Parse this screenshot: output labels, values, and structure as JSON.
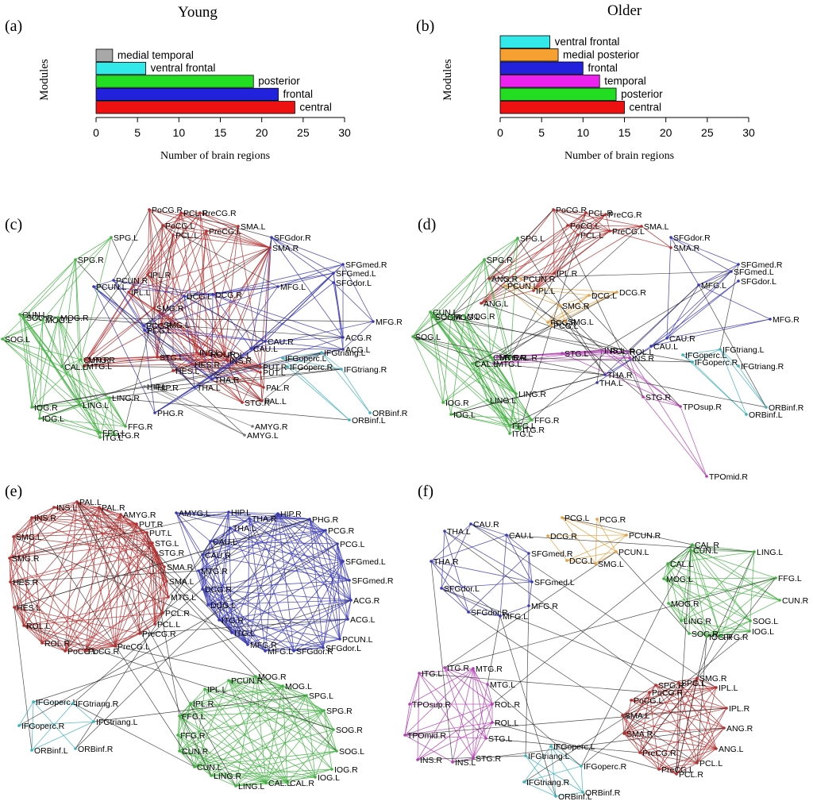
{
  "chart_data": [
    {
      "type": "bar",
      "panel": "(a)",
      "title": "Young",
      "xlabel": "Number of brain regions",
      "ylabel": "Modules",
      "xlim": [
        0,
        30
      ],
      "xticks": [
        0,
        5,
        10,
        15,
        20,
        25,
        30
      ],
      "categories": [
        "medial temporal",
        "ventral frontal",
        "posterior",
        "frontal",
        "central"
      ],
      "values": [
        2,
        6,
        19,
        22,
        24
      ],
      "colors": [
        "#a8a8a8",
        "#33e8e8",
        "#22dd22",
        "#2222dd",
        "#ee1111"
      ]
    },
    {
      "type": "bar",
      "panel": "(b)",
      "title": "Older",
      "xlabel": "Number of brain regions",
      "ylabel": "Modules",
      "xlim": [
        0,
        30
      ],
      "xticks": [
        0,
        5,
        10,
        15,
        20,
        25,
        30
      ],
      "categories": [
        "ventral frontal",
        "medial posterior",
        "frontal",
        "temporal",
        "posterior",
        "central"
      ],
      "values": [
        6,
        7,
        10,
        12,
        14,
        15
      ],
      "colors": [
        "#33e8e8",
        "#f5a030",
        "#2222dd",
        "#ee22ee",
        "#22dd22",
        "#ee1111"
      ]
    }
  ],
  "networks": [
    {
      "panel": "(c)",
      "modules": {
        "central": "#b03030",
        "frontal": "#3a3ab0",
        "posterior": "#44b044",
        "ventral frontal": "#40b0b8",
        "medial temporal": "#777777"
      },
      "nodes": [
        [
          "PoCG.R",
          "central"
        ],
        [
          "PCL.R",
          "central"
        ],
        [
          "PreCG.R",
          "central"
        ],
        [
          "PoCG.L",
          "central"
        ],
        [
          "PCL.L",
          "central"
        ],
        [
          "PreCG.L",
          "central"
        ],
        [
          "SMA.L",
          "central"
        ],
        [
          "SMA.R",
          "central"
        ],
        [
          "SFGdor.R",
          "frontal"
        ],
        [
          "SPG.L",
          "posterior"
        ],
        [
          "SPG.R",
          "posterior"
        ],
        [
          "SFGmed.R",
          "frontal"
        ],
        [
          "SFGmed.L",
          "frontal"
        ],
        [
          "SFGdor.L",
          "frontal"
        ],
        [
          "IPL.R",
          "central"
        ],
        [
          "PCUN.R",
          "frontal"
        ],
        [
          "PCUN.L",
          "frontal"
        ],
        [
          "IPL.L",
          "central"
        ],
        [
          "DCG.L",
          "frontal"
        ],
        [
          "DCG.R",
          "frontal"
        ],
        [
          "MFG.L",
          "frontal"
        ],
        [
          "SMG.R",
          "central"
        ],
        [
          "SMG.L",
          "central"
        ],
        [
          "PCG.R",
          "frontal"
        ],
        [
          "PCG.L",
          "frontal"
        ],
        [
          "CUN.L",
          "posterior"
        ],
        [
          "SOG.R",
          "posterior"
        ],
        [
          "MOG.L",
          "posterior"
        ],
        [
          "MOG.R",
          "posterior"
        ],
        [
          "SOG.L",
          "posterior"
        ],
        [
          "MFG.R",
          "frontal"
        ],
        [
          "CAU.R",
          "frontal"
        ],
        [
          "ACG.R",
          "frontal"
        ],
        [
          "CAU.L",
          "frontal"
        ],
        [
          "ACG.L",
          "frontal"
        ],
        [
          "CUN.R",
          "posterior"
        ],
        [
          "MTG.R",
          "central"
        ],
        [
          "MTG.L",
          "central"
        ],
        [
          "CAL.L",
          "posterior"
        ],
        [
          "STG.L",
          "central"
        ],
        [
          "INS.L",
          "central"
        ],
        [
          "ROL.L",
          "central"
        ],
        [
          "INS.R",
          "central"
        ],
        [
          "ROL.R",
          "central"
        ],
        [
          "HES.R",
          "central"
        ],
        [
          "HES.L",
          "central"
        ],
        [
          "IFGoperc.L",
          "ventral frontal"
        ],
        [
          "IFGtriang.L",
          "ventral frontal"
        ],
        [
          "PUT.R",
          "central"
        ],
        [
          "IFGoperc.R",
          "ventral frontal"
        ],
        [
          "IFGtriang.R",
          "ventral frontal"
        ],
        [
          "PUT.L",
          "central"
        ],
        [
          "THA.R",
          "frontal"
        ],
        [
          "THA.L",
          "frontal"
        ],
        [
          "HIP.R",
          "medial temporal"
        ],
        [
          "HIP.L",
          "medial temporal"
        ],
        [
          "LING.R",
          "posterior"
        ],
        [
          "LING.L",
          "posterior"
        ],
        [
          "PAL.R",
          "central"
        ],
        [
          "PAL.L",
          "central"
        ],
        [
          "STG.R",
          "central"
        ],
        [
          "IOG.R",
          "posterior"
        ],
        [
          "IOG.L",
          "posterior"
        ],
        [
          "PHG.R",
          "frontal"
        ],
        [
          "ORBinf.R",
          "ventral frontal"
        ],
        [
          "ORBinf.L",
          "ventral frontal"
        ],
        [
          "FFG.L",
          "posterior"
        ],
        [
          "FFG.R",
          "posterior"
        ],
        [
          "ITG.R",
          "posterior"
        ],
        [
          "ITG.L",
          "posterior"
        ],
        [
          "AMYG.R",
          "medial temporal"
        ],
        [
          "AMYG.L",
          "medial temporal"
        ]
      ]
    },
    {
      "panel": "(d)",
      "modules": {
        "central": "#b03030",
        "frontal": "#3a3ab0",
        "posterior": "#44b044",
        "ventral frontal": "#40b0b8",
        "medial posterior": "#e0a040",
        "temporal": "#b040b0"
      },
      "nodes": [
        [
          "PoCG.R",
          "central"
        ],
        [
          "PCL.R",
          "central"
        ],
        [
          "PreCG.R",
          "central"
        ],
        [
          "PoCG.L",
          "central"
        ],
        [
          "PCL.L",
          "central"
        ],
        [
          "PreCG.L",
          "central"
        ],
        [
          "SMA.L",
          "central"
        ],
        [
          "SMA.R",
          "central"
        ],
        [
          "SFGdor.R",
          "frontal"
        ],
        [
          "SPG.L",
          "posterior"
        ],
        [
          "SPG.R",
          "posterior"
        ],
        [
          "SFGmed.R",
          "frontal"
        ],
        [
          "SFGmed.L",
          "frontal"
        ],
        [
          "SFGdor.L",
          "frontal"
        ],
        [
          "IPL.R",
          "central"
        ],
        [
          "ANG.R",
          "central"
        ],
        [
          "PCUN.R",
          "medial posterior"
        ],
        [
          "PCUN.L",
          "medial posterior"
        ],
        [
          "IPL.L",
          "central"
        ],
        [
          "ANG.L",
          "central"
        ],
        [
          "DCG.L",
          "medial posterior"
        ],
        [
          "DCG.R",
          "medial posterior"
        ],
        [
          "MFG.L",
          "frontal"
        ],
        [
          "SMG.R",
          "medial posterior"
        ],
        [
          "PCG.R",
          "medial posterior"
        ],
        [
          "SMG.L",
          "medial posterior"
        ],
        [
          "PCG.L",
          "medial posterior"
        ],
        [
          "CUN.L",
          "posterior"
        ],
        [
          "SOG.R",
          "posterior"
        ],
        [
          "MOG.L",
          "posterior"
        ],
        [
          "MOG.R",
          "posterior"
        ],
        [
          "SOG.L",
          "posterior"
        ],
        [
          "MFG.R",
          "frontal"
        ],
        [
          "CAU.R",
          "frontal"
        ],
        [
          "CAU.L",
          "frontal"
        ],
        [
          "CUN.R",
          "posterior"
        ],
        [
          "MTG.R",
          "temporal"
        ],
        [
          "MTG.L",
          "temporal"
        ],
        [
          "CAL.L",
          "posterior"
        ],
        [
          "CAL.R",
          "posterior"
        ],
        [
          "STG.L",
          "temporal"
        ],
        [
          "INS.L",
          "temporal"
        ],
        [
          "ROL.L",
          "temporal"
        ],
        [
          "INS.R",
          "temporal"
        ],
        [
          "ROL.R",
          "temporal"
        ],
        [
          "IFGtriang.L",
          "ventral frontal"
        ],
        [
          "IFGoperc.L",
          "ventral frontal"
        ],
        [
          "IFGoperc.R",
          "ventral frontal"
        ],
        [
          "IFGtriang.R",
          "ventral frontal"
        ],
        [
          "THA.R",
          "frontal"
        ],
        [
          "THA.L",
          "frontal"
        ],
        [
          "LING.R",
          "posterior"
        ],
        [
          "LING.L",
          "posterior"
        ],
        [
          "STG.R",
          "temporal"
        ],
        [
          "IOG.R",
          "posterior"
        ],
        [
          "IOG.L",
          "posterior"
        ],
        [
          "TPOsup.R",
          "temporal"
        ],
        [
          "ORBinf.R",
          "ventral frontal"
        ],
        [
          "ORBinf.L",
          "ventral frontal"
        ],
        [
          "FFG.R",
          "posterior"
        ],
        [
          "FFG.L",
          "posterior"
        ],
        [
          "ITG.L",
          "posterior"
        ],
        [
          "ITG.R",
          "posterior"
        ],
        [
          "TPOmid.R",
          "temporal"
        ]
      ]
    },
    {
      "panel": "(e)",
      "modules": {
        "central": "#b03030",
        "frontal": "#3a3ab0",
        "posterior": "#44b044",
        "ventral frontal": "#40b0b8"
      },
      "nodes": [
        [
          "PAL.L",
          "central"
        ],
        [
          "INS.L",
          "central"
        ],
        [
          "PAL.R",
          "central"
        ],
        [
          "AMYG.R",
          "central"
        ],
        [
          "AMYG.L",
          "frontal"
        ],
        [
          "HIP.L",
          "frontal"
        ],
        [
          "HIP.R",
          "frontal"
        ],
        [
          "INS.R",
          "central"
        ],
        [
          "PUT.R",
          "central"
        ],
        [
          "PUT.L",
          "central"
        ],
        [
          "THA.R",
          "frontal"
        ],
        [
          "THA.L",
          "frontal"
        ],
        [
          "PHG.R",
          "frontal"
        ],
        [
          "SMG.L",
          "central"
        ],
        [
          "STG.L",
          "central"
        ],
        [
          "CAU.L",
          "frontal"
        ],
        [
          "PCG.R",
          "frontal"
        ],
        [
          "STG.R",
          "central"
        ],
        [
          "PCG.L",
          "frontal"
        ],
        [
          "SMG.R",
          "central"
        ],
        [
          "CAU.R",
          "frontal"
        ],
        [
          "SFGmed.L",
          "frontal"
        ],
        [
          "SMA.R",
          "central"
        ],
        [
          "MTG.R",
          "frontal"
        ],
        [
          "SMA.L",
          "central"
        ],
        [
          "SFGmed.R",
          "frontal"
        ],
        [
          "HES.R",
          "central"
        ],
        [
          "DCG.R",
          "frontal"
        ],
        [
          "MTG.L",
          "central"
        ],
        [
          "ACG.R",
          "frontal"
        ],
        [
          "DCG.L",
          "frontal"
        ],
        [
          "HES.L",
          "central"
        ],
        [
          "PCL.R",
          "central"
        ],
        [
          "ACG.L",
          "frontal"
        ],
        [
          "ROL.L",
          "central"
        ],
        [
          "ITG.R",
          "frontal"
        ],
        [
          "PCL.L",
          "central"
        ],
        [
          "PreCG.R",
          "central"
        ],
        [
          "ITG.L",
          "frontal"
        ],
        [
          "PCUN.L",
          "frontal"
        ],
        [
          "ROL.R",
          "central"
        ],
        [
          "PreCG.L",
          "central"
        ],
        [
          "MFG.R",
          "frontal"
        ],
        [
          "PoCG.L",
          "central"
        ],
        [
          "PoCG.R",
          "central"
        ],
        [
          "MFG.L",
          "frontal"
        ],
        [
          "SFGdor.R",
          "frontal"
        ],
        [
          "SFGdor.L",
          "frontal"
        ],
        [
          "PCUN.R",
          "posterior"
        ],
        [
          "MOG.R",
          "posterior"
        ],
        [
          "IPL.L",
          "posterior"
        ],
        [
          "MOG.L",
          "posterior"
        ],
        [
          "SPG.L",
          "posterior"
        ],
        [
          "IFGoperc.L",
          "ventral frontal"
        ],
        [
          "IFGtriang.R",
          "ventral frontal"
        ],
        [
          "IPL.R",
          "posterior"
        ],
        [
          "SPG.R",
          "posterior"
        ],
        [
          "IFGoperc.R",
          "ventral frontal"
        ],
        [
          "IFGtriang.L",
          "ventral frontal"
        ],
        [
          "FFG.L",
          "posterior"
        ],
        [
          "SOG.R",
          "posterior"
        ],
        [
          "FFG.R",
          "posterior"
        ],
        [
          "ORBinf.L",
          "ventral frontal"
        ],
        [
          "ORBinf.R",
          "ventral frontal"
        ],
        [
          "CUN.R",
          "posterior"
        ],
        [
          "SOG.L",
          "posterior"
        ],
        [
          "CUN.L",
          "posterior"
        ],
        [
          "IOG.R",
          "posterior"
        ],
        [
          "LING.R",
          "posterior"
        ],
        [
          "IOG.L",
          "posterior"
        ],
        [
          "CAL.L",
          "posterior"
        ],
        [
          "LING.L",
          "posterior"
        ],
        [
          "CAL.R",
          "posterior"
        ]
      ]
    },
    {
      "panel": "(f)",
      "modules": {
        "central": "#b03030",
        "frontal": "#3a3ab0",
        "posterior": "#44b044",
        "ventral frontal": "#40b0b8",
        "medial posterior": "#e0a040",
        "temporal": "#b040b0"
      },
      "nodes": [
        [
          "PCG.L",
          "medial posterior"
        ],
        [
          "PCG.R",
          "medial posterior"
        ],
        [
          "CAU.R",
          "frontal"
        ],
        [
          "THA.L",
          "frontal"
        ],
        [
          "CAU.L",
          "frontal"
        ],
        [
          "DCG.R",
          "medial posterior"
        ],
        [
          "PCUN.R",
          "medial posterior"
        ],
        [
          "CAL.R",
          "posterior"
        ],
        [
          "SFGmed.R",
          "frontal"
        ],
        [
          "PCUN.L",
          "medial posterior"
        ],
        [
          "CUN.L",
          "posterior"
        ],
        [
          "LING.L",
          "posterior"
        ],
        [
          "THA.R",
          "frontal"
        ],
        [
          "DCG.L",
          "medial posterior"
        ],
        [
          "SMG.L",
          "medial posterior"
        ],
        [
          "CAL.L",
          "posterior"
        ],
        [
          "FFG.L",
          "posterior"
        ],
        [
          "SFGmed.L",
          "frontal"
        ],
        [
          "SFGdor.L",
          "frontal"
        ],
        [
          "MOG.L",
          "posterior"
        ],
        [
          "CUN.R",
          "posterior"
        ],
        [
          "MFG.R",
          "frontal"
        ],
        [
          "MOG.R",
          "posterior"
        ],
        [
          "SFGdor.R",
          "frontal"
        ],
        [
          "MFG.L",
          "frontal"
        ],
        [
          "LING.R",
          "posterior"
        ],
        [
          "SOG.L",
          "posterior"
        ],
        [
          "SOG.R",
          "posterior"
        ],
        [
          "IOG.L",
          "posterior"
        ],
        [
          "IOG.R",
          "posterior"
        ],
        [
          "FFG.R",
          "posterior"
        ],
        [
          "ITG.R",
          "temporal"
        ],
        [
          "MTG.R",
          "temporal"
        ],
        [
          "ITG.L",
          "temporal"
        ],
        [
          "MTG.L",
          "temporal"
        ],
        [
          "SMG.R",
          "central"
        ],
        [
          "SPG.R",
          "central"
        ],
        [
          "SPG.L",
          "central"
        ],
        [
          "IPL.L",
          "central"
        ],
        [
          "PoCG.R",
          "central"
        ],
        [
          "PoCG.L",
          "central"
        ],
        [
          "TPOsup.R",
          "temporal"
        ],
        [
          "ROL.R",
          "temporal"
        ],
        [
          "IPL.R",
          "central"
        ],
        [
          "ROL.L",
          "temporal"
        ],
        [
          "SMA.L",
          "central"
        ],
        [
          "ANG.R",
          "central"
        ],
        [
          "SMA.R",
          "central"
        ],
        [
          "TPOmid.R",
          "temporal"
        ],
        [
          "STG.L",
          "temporal"
        ],
        [
          "ANG.L",
          "central"
        ],
        [
          "PreCG.R",
          "central"
        ],
        [
          "PCL.L",
          "central"
        ],
        [
          "IFGoperc.L",
          "ventral frontal"
        ],
        [
          "INS.R",
          "temporal"
        ],
        [
          "INS.L",
          "temporal"
        ],
        [
          "STG.R",
          "temporal"
        ],
        [
          "IFGtriang.L",
          "ventral frontal"
        ],
        [
          "IFGoperc.R",
          "ventral frontal"
        ],
        [
          "PreCG.L",
          "central"
        ],
        [
          "PCL.R",
          "central"
        ],
        [
          "IFGtriang.R",
          "ventral frontal"
        ],
        [
          "ORBinf.L",
          "ventral frontal"
        ],
        [
          "ORBinf.R",
          "ventral frontal"
        ]
      ]
    }
  ]
}
